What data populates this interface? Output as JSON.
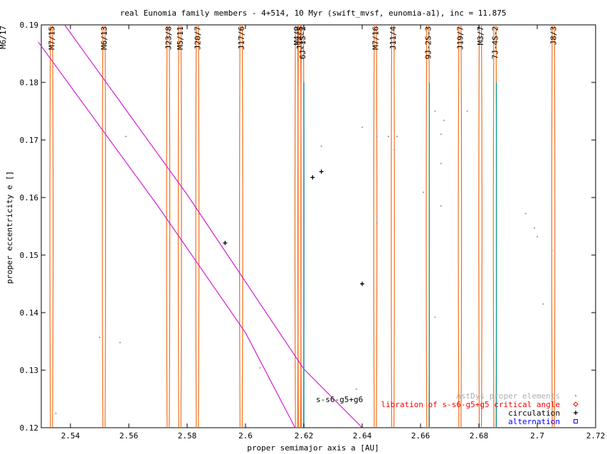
{
  "chart_data": {
    "type": "scatter",
    "title": "real Eunomia family members - 4+514, 10 Myr (swift_mvsf, eunomia-a1), inc = 11.875",
    "xlabel": "proper semimajor axis a [AU]",
    "ylabel": "proper eccentricity e []",
    "xlim": [
      2.53,
      2.72
    ],
    "ylim": [
      0.12,
      0.19
    ],
    "xticks": [
      "2.54",
      "2.56",
      "2.58",
      "2.6",
      "2.62",
      "2.64",
      "2.66",
      "2.68",
      "2.7",
      "2.72"
    ],
    "xtick_values": [
      2.54,
      2.56,
      2.58,
      2.6,
      2.62,
      2.64,
      2.66,
      2.68,
      2.7,
      2.72
    ],
    "yticks": [
      "0.12",
      "0.13",
      "0.14",
      "0.15",
      "0.16",
      "0.17",
      "0.18",
      "0.19"
    ],
    "ytick_values": [
      0.12,
      0.13,
      0.14,
      0.15,
      0.16,
      0.17,
      0.18,
      0.19
    ],
    "resonances": [
      {
        "label": "M7/15",
        "a": 2.5335
      },
      {
        "label": "M6/13",
        "a": 2.5515
      },
      {
        "label": "J23/8",
        "a": 2.5735
      },
      {
        "label": "M5/11",
        "a": 2.5775
      },
      {
        "label": "J20/7",
        "a": 2.5835
      },
      {
        "label": "J17/6",
        "a": 2.5985
      },
      {
        "label": "M4/9",
        "a": 2.6175
      },
      {
        "label": "J14/5",
        "a": 2.6185
      },
      {
        "label": "6J-1S-2",
        "a": 2.6195
      },
      {
        "label": "M7/16",
        "a": 2.6445
      },
      {
        "label": "J11/4",
        "a": 2.6505
      },
      {
        "label": "9J-2S-3",
        "a": 2.6625
      },
      {
        "label": "J19/7",
        "a": 2.6735
      },
      {
        "label": "M3/7",
        "a": 2.6805
      },
      {
        "label": "7J-4S-2",
        "a": 2.6855
      },
      {
        "label": "J8/3",
        "a": 2.7055
      }
    ],
    "corner_label": "M6/17",
    "secular_label": "s-s6-g5+g6",
    "series": [
      {
        "name": "AstDys proper elements",
        "color": "#a0a0a0",
        "points": [
          [
            2.535,
            0.1225
          ],
          [
            2.55,
            0.1357
          ],
          [
            2.557,
            0.1348
          ],
          [
            2.559,
            0.1706
          ],
          [
            2.574,
            0.1521
          ],
          [
            2.605,
            0.1304
          ],
          [
            2.626,
            0.1689
          ],
          [
            2.638,
            0.1267
          ],
          [
            2.64,
            0.1722
          ],
          [
            2.645,
            0.1706
          ],
          [
            2.649,
            0.1706
          ],
          [
            2.652,
            0.1706
          ],
          [
            2.651,
            0.1683
          ],
          [
            2.645,
            0.1556
          ],
          [
            2.661,
            0.1609
          ],
          [
            2.665,
            0.175
          ],
          [
            2.668,
            0.1734
          ],
          [
            2.667,
            0.171
          ],
          [
            2.667,
            0.1659
          ],
          [
            2.667,
            0.1585
          ],
          [
            2.665,
            0.1392
          ],
          [
            2.676,
            0.175
          ],
          [
            2.696,
            0.1572
          ],
          [
            2.699,
            0.1547
          ],
          [
            2.7,
            0.1532
          ],
          [
            2.702,
            0.1415
          ],
          [
            2.705,
            0.1508
          ]
        ]
      },
      {
        "name": "libration of s-s6-g5+g5 critical angle",
        "color": "#ff0000",
        "points": []
      },
      {
        "name": "circulation",
        "color": "#000000",
        "points": [
          [
            2.593,
            0.1521
          ],
          [
            2.623,
            0.1635
          ],
          [
            2.626,
            0.1645
          ],
          [
            2.64,
            0.145
          ]
        ]
      },
      {
        "name": "alternation",
        "color": "#0000ff",
        "points": []
      }
    ],
    "vertical_lines": [
      {
        "a": 2.62,
        "e_top": 0.18,
        "color": "#1e90c0"
      },
      {
        "a": 2.663,
        "e_top": 0.18,
        "color": "#20a0a0"
      },
      {
        "a": 2.686,
        "e_top": 0.18,
        "color": "#20a0a0"
      }
    ],
    "secular_curves": [
      {
        "points": [
          [
            2.538,
            0.19
          ],
          [
            2.58,
            0.1605
          ],
          [
            2.62,
            0.1302
          ],
          [
            2.64,
            0.12
          ]
        ]
      },
      {
        "points": [
          [
            2.529,
            0.187
          ],
          [
            2.57,
            0.1585
          ],
          [
            2.6,
            0.1365
          ],
          [
            2.617,
            0.12
          ]
        ]
      }
    ],
    "grid": false,
    "legend_position": "bottom-right"
  }
}
